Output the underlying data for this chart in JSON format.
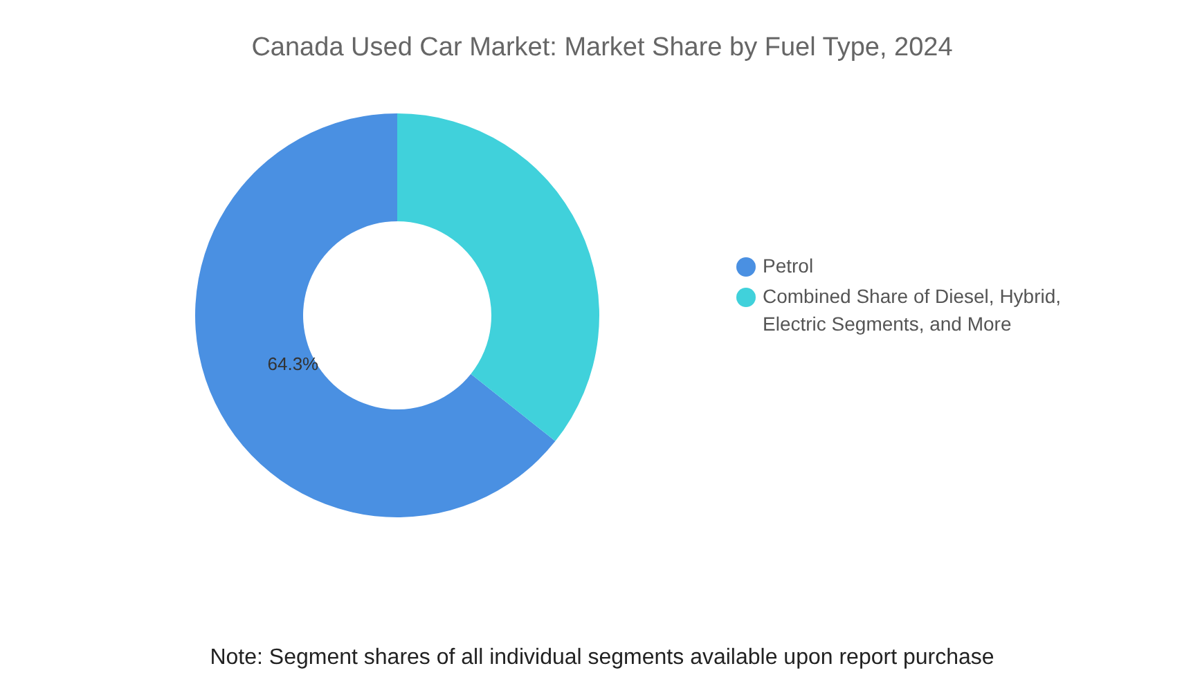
{
  "chart_data": {
    "type": "donut",
    "title": "Canada Used Car Market: Market Share by Fuel Type, 2024",
    "categories": [
      "Petrol",
      "Combined Share of Diesel, Hybrid, Electric Segments, and More"
    ],
    "values": [
      64.3,
      35.7
    ],
    "colors": [
      "#4a90e2",
      "#40d1db"
    ],
    "value_labels": [
      "64.3%",
      null
    ],
    "legend": "right",
    "annotations": [
      "Note: Segment shares of all individual segments available upon report purchase"
    ]
  }
}
